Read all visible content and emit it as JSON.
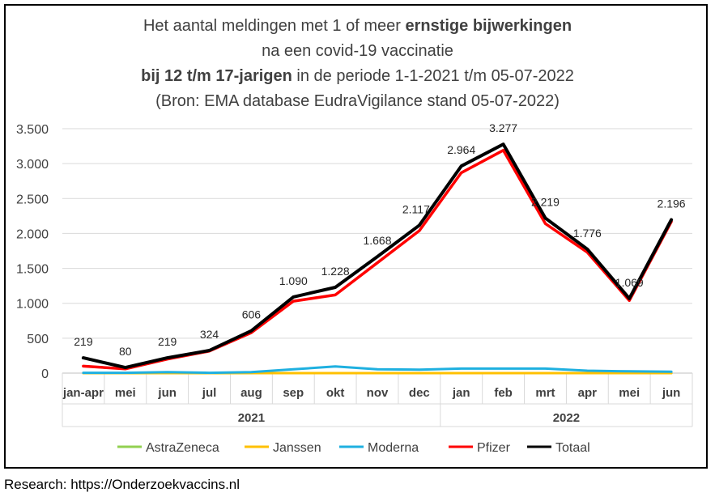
{
  "title": {
    "line1_pre": "Het aantal meldingen met 1 of meer ",
    "line1_bold": "ernstige bijwerkingen",
    "line2": "na een covid-19 vaccinatie",
    "line3_bold": "bij 12 t/m 17-jarigen",
    "line3_post": " in de periode 1-1-2021 t/m 05-07-2022",
    "line4": "(Bron: EMA database EudraVigilance stand 05-07-2022)"
  },
  "footer": "Research: https://Onderzoekvaccins.nl",
  "colors": {
    "AstraZeneca": "#92d050",
    "Janssen": "#ffc000",
    "Moderna": "#1fb0e0",
    "Pfizer": "#ff0000",
    "Totaal": "#000000",
    "grid": "#d9d9d9",
    "text": "#404040"
  },
  "chart_data": {
    "type": "line",
    "categories": [
      "jan-apr",
      "mei",
      "jun",
      "jul",
      "aug",
      "sep",
      "okt",
      "nov",
      "dec",
      "jan",
      "feb",
      "mrt",
      "apr",
      "mei",
      "jun"
    ],
    "groups": [
      {
        "label": "2021",
        "start": 0,
        "end": 8
      },
      {
        "label": "2022",
        "start": 9,
        "end": 14
      }
    ],
    "ylim": [
      0,
      3500
    ],
    "yticks": [
      0,
      500,
      1000,
      1500,
      2000,
      2500,
      3000,
      3500
    ],
    "ytick_labels": [
      "0",
      "500",
      "1.000",
      "1.500",
      "2.000",
      "2.500",
      "3.000",
      "3.500"
    ],
    "series": [
      {
        "name": "AstraZeneca",
        "values": [
          0,
          0,
          0,
          0,
          0,
          0,
          0,
          0,
          0,
          0,
          0,
          0,
          0,
          0,
          0
        ]
      },
      {
        "name": "Janssen",
        "values": [
          0,
          0,
          0,
          0,
          0,
          0,
          0,
          0,
          0,
          0,
          0,
          0,
          0,
          0,
          0
        ]
      },
      {
        "name": "Moderna",
        "values": [
          5,
          5,
          15,
          5,
          15,
          55,
          95,
          55,
          50,
          65,
          65,
          65,
          35,
          25,
          20
        ]
      },
      {
        "name": "Pfizer",
        "values": [
          100,
          60,
          200,
          315,
          580,
          1030,
          1120,
          1580,
          2040,
          2870,
          3190,
          2140,
          1730,
          1040,
          2170
        ]
      },
      {
        "name": "Totaal",
        "values": [
          219,
          80,
          219,
          324,
          606,
          1090,
          1228,
          1668,
          2117,
          2964,
          3277,
          2219,
          1776,
          1069,
          2196
        ]
      }
    ],
    "data_labels": [
      "219",
      "80",
      "219",
      "324",
      "606",
      "1.090",
      "1.228",
      "1.668",
      "2.117",
      "2.964",
      "3.277",
      "2.219",
      "1.776",
      "1.069",
      "2.196"
    ],
    "legend": [
      "AstraZeneca",
      "Janssen",
      "Moderna",
      "Pfizer",
      "Totaal"
    ],
    "legend_position": "bottom",
    "grid": true
  }
}
